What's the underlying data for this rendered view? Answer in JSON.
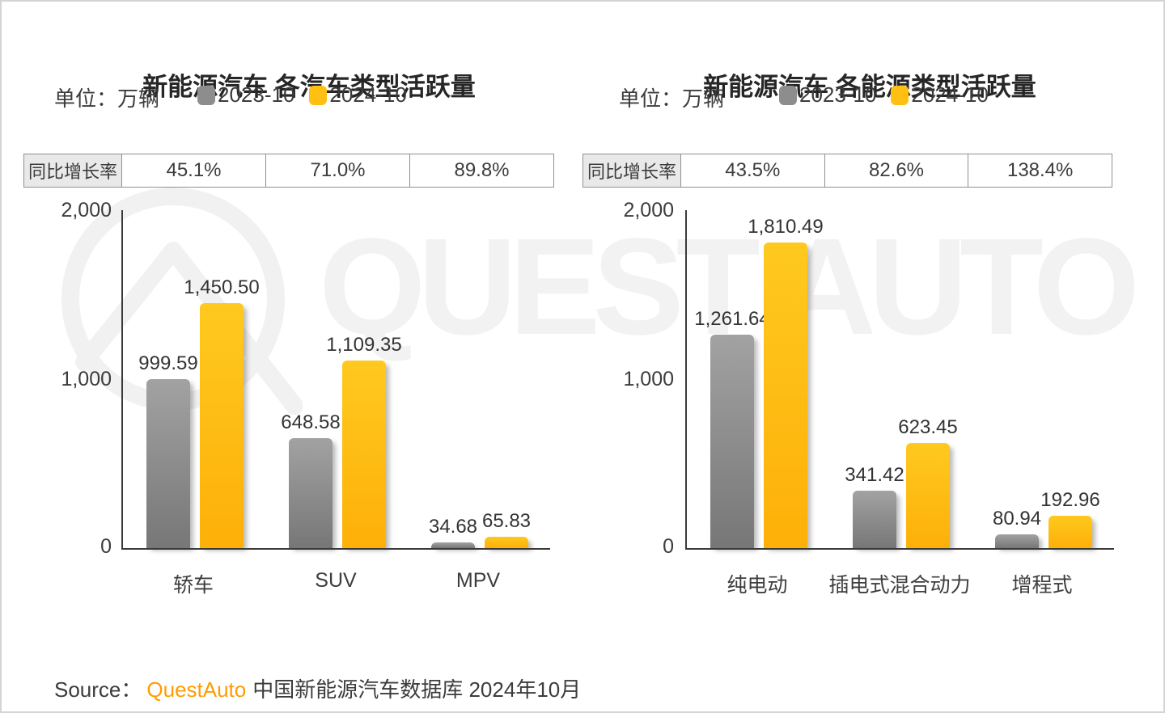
{
  "page": {
    "watermark_text": "QUEST AUTO",
    "source": {
      "label": "Source：",
      "brand": "QuestAuto",
      "text": "中国新能源汽车数据库 2024年10月"
    }
  },
  "colors": {
    "bar_2023": "#8d8d8d",
    "bar_2024": "#ffc013",
    "brand_orange": "#ff9c00",
    "watermark": "#f2f2f2",
    "growth_header_bg": "#e9e9e9"
  },
  "chart_data": [
    {
      "type": "bar",
      "title": "新能源汽车 各汽车类型活跃量",
      "unit_label": "单位：万辆",
      "growth_label": "同比增长率",
      "growth_rates": [
        "45.1%",
        "71.0%",
        "89.8%"
      ],
      "categories": [
        "轿车",
        "SUV",
        "MPV"
      ],
      "series": [
        {
          "name": "2023-10",
          "color": "#8d8d8d",
          "values": [
            999.59,
            648.58,
            34.68
          ]
        },
        {
          "name": "2024-10",
          "color": "#ffc013",
          "values": [
            1450.5,
            1109.35,
            65.83
          ]
        }
      ],
      "value_labels": [
        [
          "999.59",
          "1,450.50"
        ],
        [
          "648.58",
          "1,109.35"
        ],
        [
          "34.68",
          "65.83"
        ]
      ],
      "ylim": [
        0,
        2000
      ],
      "y_ticks": [
        "2,000",
        "1,000",
        "0"
      ],
      "grid": false,
      "legend_position": "top"
    },
    {
      "type": "bar",
      "title": "新能源汽车 各能源类型活跃量",
      "unit_label": "单位：万辆",
      "growth_label": "同比增长率",
      "growth_rates": [
        "43.5%",
        "82.6%",
        "138.4%"
      ],
      "categories": [
        "纯电动",
        "插电式混合动力",
        "增程式"
      ],
      "series": [
        {
          "name": "2023-10",
          "color": "#8d8d8d",
          "values": [
            1261.64,
            341.42,
            80.94
          ]
        },
        {
          "name": "2024-10",
          "color": "#ffc013",
          "values": [
            1810.49,
            623.45,
            192.96
          ]
        }
      ],
      "value_labels": [
        [
          "1,261.64",
          "1,810.49"
        ],
        [
          "341.42",
          "623.45"
        ],
        [
          "80.94",
          "192.96"
        ]
      ],
      "ylim": [
        0,
        2000
      ],
      "y_ticks": [
        "2,000",
        "1,000",
        "0"
      ],
      "grid": false,
      "legend_position": "top"
    }
  ]
}
